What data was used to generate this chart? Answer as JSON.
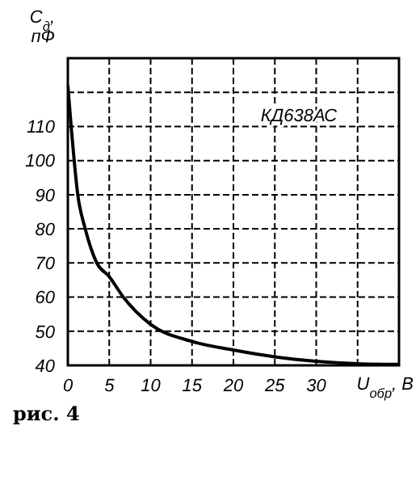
{
  "chart_data": {
    "type": "line",
    "xlabel": "U$_{обр}$, В",
    "ylabel": "C$_{д}$, пФ",
    "annotations": [
      "КД638АС",
      "рис. 4"
    ],
    "x": [
      0,
      0.4,
      1.2,
      2.1,
      3.5,
      5,
      6.7,
      10,
      15,
      20,
      25,
      30,
      35,
      40
    ],
    "series": [
      {
        "color": "#000000",
        "values": [
          122,
          110,
          90,
          80,
          70,
          66,
          60,
          52,
          47,
          44.5,
          42.5,
          41.2,
          40.5,
          40.3
        ]
      }
    ],
    "xlim": [
      0,
      40
    ],
    "xticks": [
      0,
      5,
      10,
      15,
      20,
      25,
      30,
      {
        "value": 35,
        "label": null
      }
    ],
    "ylim": [
      40,
      130
    ],
    "yticks": [
      40,
      50,
      60,
      70,
      80,
      90,
      100,
      110,
      {
        "value": 120,
        "label": null
      }
    ],
    "grid": true,
    "legend": false,
    "marker": "none",
    "line_style": "solid"
  }
}
